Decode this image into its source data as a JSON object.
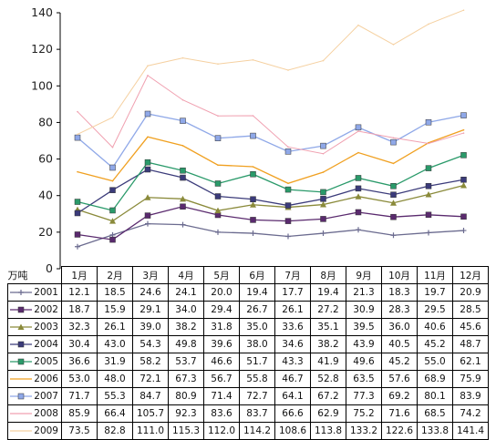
{
  "unit_label": "万吨",
  "chart_data": {
    "type": "line",
    "categories": [
      "1月",
      "2月",
      "3月",
      "4月",
      "5月",
      "6月",
      "7月",
      "8月",
      "9月",
      "10月",
      "11月",
      "12月"
    ],
    "ylim": [
      0,
      140
    ],
    "yticks": [
      0,
      20,
      40,
      60,
      80,
      100,
      120,
      140
    ],
    "grid": false,
    "legend": "data table below chart",
    "series": [
      {
        "name": "2001",
        "color": "#6b6b8f",
        "marker": "plus",
        "values": [
          "12.1",
          "18.5",
          "24.6",
          "24.1",
          "20.0",
          "19.4",
          "17.7",
          "19.4",
          "21.3",
          "18.3",
          "19.7",
          "20.9"
        ]
      },
      {
        "name": "2002",
        "color": "#5a2a6e",
        "marker": "square",
        "values": [
          "18.7",
          "15.9",
          "29.1",
          "34.0",
          "29.4",
          "26.7",
          "26.1",
          "27.2",
          "30.9",
          "28.3",
          "29.5",
          "28.5"
        ]
      },
      {
        "name": "2003",
        "color": "#8a8a3a",
        "marker": "triangle",
        "values": [
          "32.3",
          "26.1",
          "39.0",
          "38.2",
          "31.8",
          "35.0",
          "33.6",
          "35.1",
          "39.5",
          "36.0",
          "40.6",
          "45.6"
        ]
      },
      {
        "name": "2004",
        "color": "#3b3b7a",
        "marker": "square",
        "values": [
          "30.4",
          "43.0",
          "54.3",
          "49.8",
          "39.6",
          "38.0",
          "34.6",
          "38.2",
          "43.9",
          "40.5",
          "45.2",
          "48.7"
        ]
      },
      {
        "name": "2005",
        "color": "#2a9a6a",
        "marker": "square",
        "values": [
          "36.6",
          "31.9",
          "58.2",
          "53.7",
          "46.6",
          "51.7",
          "43.3",
          "41.9",
          "49.6",
          "45.2",
          "55.0",
          "62.1"
        ]
      },
      {
        "name": "2006",
        "color": "#f0a020",
        "marker": "none",
        "values": [
          "53.0",
          "48.0",
          "72.1",
          "67.3",
          "56.7",
          "55.8",
          "46.7",
          "52.8",
          "63.5",
          "57.6",
          "68.9",
          "75.9"
        ]
      },
      {
        "name": "2007",
        "color": "#8fa8e8",
        "marker": "square",
        "values": [
          "71.7",
          "55.3",
          "84.7",
          "80.9",
          "71.4",
          "72.7",
          "64.1",
          "67.2",
          "77.3",
          "69.2",
          "80.1",
          "83.9"
        ]
      },
      {
        "name": "2008",
        "color": "#f0a0b0",
        "marker": "none",
        "values": [
          "85.9",
          "66.4",
          "105.7",
          "92.3",
          "83.6",
          "83.7",
          "66.6",
          "62.9",
          "75.2",
          "71.6",
          "68.5",
          "74.2"
        ]
      },
      {
        "name": "2009",
        "color": "#f5d0a0",
        "marker": "none",
        "values": [
          "73.5",
          "82.8",
          "111.0",
          "115.3",
          "112.0",
          "114.2",
          "108.6",
          "113.8",
          "133.2",
          "122.6",
          "133.8",
          "141.4"
        ]
      }
    ]
  }
}
